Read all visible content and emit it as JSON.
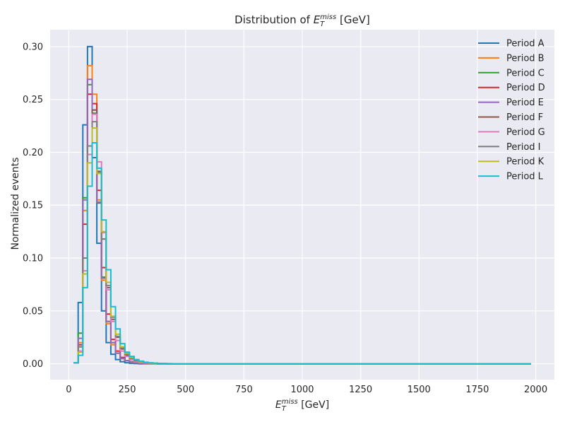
{
  "chart_data": {
    "type": "line",
    "step": true,
    "title": {
      "prefix": "Distribution of ",
      "symbol": "E",
      "sub": "T",
      "sup": "miss",
      "suffix": " [GeV]"
    },
    "xlabel": {
      "symbol": "E",
      "sub": "T",
      "sup": "miss",
      "suffix": " [GeV]"
    },
    "ylabel": "Normalized events",
    "xlim": [
      -80,
      2080
    ],
    "ylim": [
      -0.015,
      0.316
    ],
    "xticks": [
      0,
      250,
      500,
      750,
      1000,
      1250,
      1500,
      1750,
      2000
    ],
    "yticks": [
      0.0,
      0.05,
      0.1,
      0.15,
      0.2,
      0.25,
      0.3
    ],
    "ytick_labels": [
      "0.00",
      "0.05",
      "0.10",
      "0.15",
      "0.20",
      "0.25",
      "0.30"
    ],
    "grid": true,
    "legend_position": "top-right",
    "bin_edges": [
      20,
      40,
      60,
      80,
      100,
      120,
      140,
      160,
      180,
      200,
      220,
      240,
      260,
      280,
      300,
      320,
      340,
      360,
      380,
      400,
      420,
      440,
      460,
      480,
      500,
      520,
      540,
      560,
      580,
      600,
      620,
      640,
      660,
      680,
      700,
      720,
      740,
      760,
      780,
      800,
      820,
      840,
      860,
      880,
      900,
      920,
      940,
      960,
      980,
      1000,
      1020,
      1040,
      1060,
      1080,
      1100,
      1120,
      1140,
      1160,
      1180,
      1200,
      1220,
      1240,
      1260,
      1280,
      1300,
      1320,
      1340,
      1360,
      1380,
      1400,
      1420,
      1440,
      1460,
      1480,
      1500,
      1520,
      1540,
      1560,
      1580,
      1600,
      1620,
      1640,
      1660,
      1680,
      1700,
      1720,
      1740,
      1760,
      1780,
      1800,
      1820,
      1840,
      1860,
      1880,
      1900,
      1920,
      1940,
      1960,
      1980
    ],
    "series": [
      {
        "name": "Period A",
        "color": "#1f77b4",
        "values": [
          0.001,
          0.058,
          0.226,
          0.3,
          0.195,
          0.114,
          0.05,
          0.02,
          0.009,
          0.004,
          0.002,
          0.001,
          0.0005,
          0.0002
        ]
      },
      {
        "name": "Period B",
        "color": "#ff7f0e",
        "values": [
          0.001,
          0.02,
          0.145,
          0.282,
          0.255,
          0.155,
          0.079,
          0.038,
          0.018,
          0.01,
          0.005,
          0.003,
          0.002,
          0.001,
          0.0006,
          0.0003,
          0.0002,
          0.0001
        ]
      },
      {
        "name": "Period C",
        "color": "#2ca02c",
        "values": [
          0.001,
          0.029,
          0.157,
          0.264,
          0.237,
          0.152,
          0.082,
          0.04,
          0.02,
          0.01,
          0.005,
          0.003,
          0.002,
          0.001,
          0.0006,
          0.0003,
          0.0002,
          0.0001
        ]
      },
      {
        "name": "Period D",
        "color": "#d62728",
        "values": [
          0.001,
          0.018,
          0.132,
          0.255,
          0.246,
          0.164,
          0.091,
          0.047,
          0.023,
          0.012,
          0.006,
          0.003,
          0.002,
          0.001,
          0.0007,
          0.0004,
          0.0002,
          0.0001
        ]
      },
      {
        "name": "Period E",
        "color": "#9467bd",
        "values": [
          0.001,
          0.024,
          0.155,
          0.269,
          0.24,
          0.153,
          0.081,
          0.04,
          0.02,
          0.01,
          0.005,
          0.003,
          0.002,
          0.001,
          0.0006,
          0.0003,
          0.0002,
          0.0001
        ]
      },
      {
        "name": "Period F",
        "color": "#8c564b",
        "values": [
          0.001,
          0.016,
          0.1,
          0.206,
          0.24,
          0.182,
          0.118,
          0.072,
          0.042,
          0.025,
          0.014,
          0.008,
          0.005,
          0.003,
          0.002,
          0.001,
          0.0006,
          0.0003,
          0.0002,
          0.0001
        ]
      },
      {
        "name": "Period G",
        "color": "#e377c2",
        "values": [
          0.001,
          0.012,
          0.088,
          0.198,
          0.236,
          0.191,
          0.124,
          0.07,
          0.04,
          0.022,
          0.012,
          0.007,
          0.004,
          0.002,
          0.0012,
          0.0007,
          0.0004,
          0.0002,
          0.0001
        ]
      },
      {
        "name": "Period I",
        "color": "#7f7f7f",
        "values": [
          0.001,
          0.016,
          0.1,
          0.206,
          0.229,
          0.181,
          0.118,
          0.074,
          0.044,
          0.026,
          0.015,
          0.009,
          0.005,
          0.003,
          0.002,
          0.001,
          0.0006,
          0.0003,
          0.0002,
          0.0001
        ]
      },
      {
        "name": "Period K",
        "color": "#bcbd22",
        "values": [
          0.001,
          0.011,
          0.085,
          0.19,
          0.223,
          0.18,
          0.125,
          0.077,
          0.045,
          0.028,
          0.016,
          0.01,
          0.006,
          0.004,
          0.002,
          0.0013,
          0.0008,
          0.0005,
          0.0003,
          0.0002,
          0.0001
        ]
      },
      {
        "name": "Period L",
        "color": "#17becf",
        "values": [
          0.001,
          0.008,
          0.072,
          0.168,
          0.209,
          0.185,
          0.136,
          0.089,
          0.054,
          0.033,
          0.019,
          0.011,
          0.007,
          0.004,
          0.0025,
          0.0015,
          0.001,
          0.0006,
          0.0004,
          0.0002,
          0.0001
        ]
      }
    ]
  }
}
